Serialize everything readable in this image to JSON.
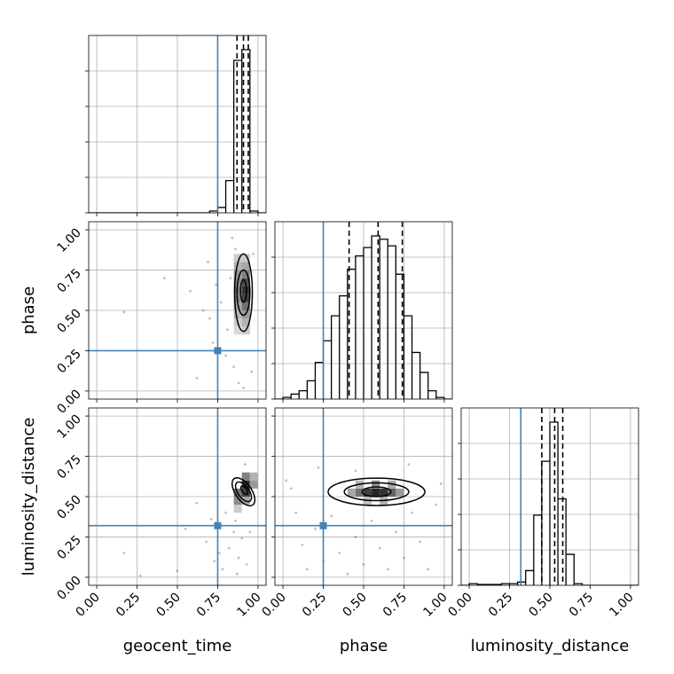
{
  "chart_data": {
    "type": "corner",
    "grid": true,
    "parameters": [
      "geocent_time",
      "phase",
      "luminosity_distance"
    ],
    "axis_labels": {
      "geocent_time": "geocent_time",
      "phase": "phase",
      "luminosity_distance": "luminosity_distance"
    },
    "range": [
      -0.05,
      1.05
    ],
    "ticks": [
      0.0,
      0.25,
      0.5,
      0.75,
      1.0
    ],
    "tick_labels": [
      "0.00",
      "0.25",
      "0.50",
      "0.75",
      "1.00"
    ],
    "truths": {
      "geocent_time": 0.75,
      "phase": 0.25,
      "luminosity_distance": 0.32
    },
    "truth_color": "#4682b4",
    "hist_color": "#000000",
    "marginals": {
      "geocent_time": {
        "bin_width": 0.05,
        "bins": [
          {
            "x": 0.7,
            "count": 0.01
          },
          {
            "x": 0.75,
            "count": 0.03
          },
          {
            "x": 0.8,
            "count": 0.18
          },
          {
            "x": 0.85,
            "count": 0.85
          },
          {
            "x": 0.9,
            "count": 0.91
          },
          {
            "x": 0.95,
            "count": 0.01
          }
        ],
        "quantiles": [
          0.87,
          0.91,
          0.94
        ]
      },
      "phase": {
        "bin_width": 0.05,
        "bins": [
          {
            "x": 0.0,
            "count": 0.01
          },
          {
            "x": 0.05,
            "count": 0.03
          },
          {
            "x": 0.1,
            "count": 0.05
          },
          {
            "x": 0.15,
            "count": 0.11
          },
          {
            "x": 0.2,
            "count": 0.22
          },
          {
            "x": 0.25,
            "count": 0.35
          },
          {
            "x": 0.3,
            "count": 0.5
          },
          {
            "x": 0.35,
            "count": 0.62
          },
          {
            "x": 0.4,
            "count": 0.78
          },
          {
            "x": 0.45,
            "count": 0.86
          },
          {
            "x": 0.5,
            "count": 0.91
          },
          {
            "x": 0.55,
            "count": 0.98
          },
          {
            "x": 0.6,
            "count": 0.96
          },
          {
            "x": 0.65,
            "count": 0.92
          },
          {
            "x": 0.7,
            "count": 0.75
          },
          {
            "x": 0.75,
            "count": 0.5
          },
          {
            "x": 0.8,
            "count": 0.28
          },
          {
            "x": 0.85,
            "count": 0.16
          },
          {
            "x": 0.9,
            "count": 0.05
          },
          {
            "x": 0.95,
            "count": 0.01
          }
        ],
        "quantiles": [
          0.41,
          0.59,
          0.74
        ]
      },
      "luminosity_distance": {
        "bin_width": 0.05,
        "bins": [
          {
            "x": 0.0,
            "count": 0.01
          },
          {
            "x": 0.05,
            "count": 0.005
          },
          {
            "x": 0.1,
            "count": 0.005
          },
          {
            "x": 0.15,
            "count": 0.005
          },
          {
            "x": 0.2,
            "count": 0.01
          },
          {
            "x": 0.25,
            "count": 0.01
          },
          {
            "x": 0.3,
            "count": 0.02
          },
          {
            "x": 0.35,
            "count": 0.09
          },
          {
            "x": 0.4,
            "count": 0.43
          },
          {
            "x": 0.45,
            "count": 0.76
          },
          {
            "x": 0.5,
            "count": 1.0
          },
          {
            "x": 0.55,
            "count": 0.53
          },
          {
            "x": 0.6,
            "count": 0.19
          },
          {
            "x": 0.65,
            "count": 0.01
          }
        ],
        "quantiles": [
          0.45,
          0.53,
          0.58
        ]
      }
    },
    "joint": [
      {
        "x": "geocent_time",
        "y": "phase",
        "scatter": [
          [
            0.17,
            0.49
          ],
          [
            0.42,
            0.7
          ],
          [
            0.58,
            0.62
          ],
          [
            0.66,
            0.5
          ],
          [
            0.7,
            0.45
          ],
          [
            0.72,
            0.3
          ],
          [
            0.8,
            0.22
          ],
          [
            0.83,
            0.7
          ],
          [
            0.85,
            0.15
          ],
          [
            0.88,
            0.05
          ],
          [
            0.84,
            0.95
          ],
          [
            0.96,
            0.12
          ],
          [
            0.81,
            0.38
          ],
          [
            0.74,
            0.66
          ],
          [
            0.62,
            0.08
          ],
          [
            0.97,
            0.85
          ],
          [
            0.91,
            0.02
          ],
          [
            0.86,
            0.88
          ],
          [
            0.69,
            0.8
          ],
          [
            0.77,
            0.55
          ]
        ],
        "density_cells": [
          {
            "x": 0.85,
            "y": 0.35,
            "level": 0.15
          },
          {
            "x": 0.85,
            "y": 0.4,
            "level": 0.2
          },
          {
            "x": 0.85,
            "y": 0.45,
            "level": 0.3
          },
          {
            "x": 0.85,
            "y": 0.5,
            "level": 0.35
          },
          {
            "x": 0.85,
            "y": 0.55,
            "level": 0.45
          },
          {
            "x": 0.85,
            "y": 0.6,
            "level": 0.5
          },
          {
            "x": 0.85,
            "y": 0.65,
            "level": 0.45
          },
          {
            "x": 0.85,
            "y": 0.7,
            "level": 0.4
          },
          {
            "x": 0.85,
            "y": 0.75,
            "level": 0.3
          },
          {
            "x": 0.85,
            "y": 0.8,
            "level": 0.2
          },
          {
            "x": 0.9,
            "y": 0.35,
            "level": 0.2
          },
          {
            "x": 0.9,
            "y": 0.4,
            "level": 0.3
          },
          {
            "x": 0.9,
            "y": 0.45,
            "level": 0.4
          },
          {
            "x": 0.9,
            "y": 0.5,
            "level": 0.55
          },
          {
            "x": 0.9,
            "y": 0.55,
            "level": 0.75
          },
          {
            "x": 0.9,
            "y": 0.6,
            "level": 0.8
          },
          {
            "x": 0.9,
            "y": 0.65,
            "level": 0.7
          },
          {
            "x": 0.9,
            "y": 0.7,
            "level": 0.5
          },
          {
            "x": 0.9,
            "y": 0.75,
            "level": 0.35
          },
          {
            "x": 0.9,
            "y": 0.8,
            "level": 0.2
          }
        ],
        "contours": [
          {
            "cx": 0.91,
            "cy": 0.61,
            "rx": 0.04,
            "ry": 0.14
          },
          {
            "cx": 0.91,
            "cy": 0.61,
            "rx": 0.055,
            "ry": 0.24
          },
          {
            "cx": 0.91,
            "cy": 0.62,
            "rx": 0.018,
            "ry": 0.07
          }
        ]
      },
      {
        "x": "geocent_time",
        "y": "luminosity_distance",
        "scatter": [
          [
            0.17,
            0.15
          ],
          [
            0.5,
            0.04
          ],
          [
            0.55,
            0.3
          ],
          [
            0.62,
            0.46
          ],
          [
            0.68,
            0.22
          ],
          [
            0.73,
            0.1
          ],
          [
            0.78,
            0.05
          ],
          [
            0.82,
            0.18
          ],
          [
            0.85,
            0.28
          ],
          [
            0.88,
            0.12
          ],
          [
            0.9,
            0.24
          ],
          [
            0.93,
            0.08
          ],
          [
            0.27,
            0.01
          ],
          [
            0.8,
            0.4
          ],
          [
            0.86,
            0.35
          ],
          [
            0.95,
            0.28
          ],
          [
            0.71,
            0.36
          ],
          [
            0.92,
            0.7
          ],
          [
            0.76,
            0.15
          ],
          [
            0.87,
            0.02
          ]
        ],
        "density_cells": [
          {
            "x": 0.85,
            "y": 0.4,
            "level": 0.2
          },
          {
            "x": 0.85,
            "y": 0.45,
            "level": 0.45
          },
          {
            "x": 0.85,
            "y": 0.5,
            "level": 0.55
          },
          {
            "x": 0.9,
            "y": 0.45,
            "level": 0.35
          },
          {
            "x": 0.9,
            "y": 0.5,
            "level": 0.75
          },
          {
            "x": 0.9,
            "y": 0.55,
            "level": 0.8
          },
          {
            "x": 0.9,
            "y": 0.6,
            "level": 0.5
          },
          {
            "x": 0.95,
            "y": 0.55,
            "level": 0.4
          },
          {
            "x": 0.95,
            "y": 0.6,
            "level": 0.3
          }
        ],
        "contours": [
          {
            "cx": 0.91,
            "cy": 0.53,
            "rx": 0.05,
            "ry": 0.1,
            "rot": -35
          },
          {
            "cx": 0.91,
            "cy": 0.53,
            "rx": 0.035,
            "ry": 0.07,
            "rot": -35
          },
          {
            "cx": 0.915,
            "cy": 0.54,
            "rx": 0.015,
            "ry": 0.03,
            "rot": -35
          }
        ]
      },
      {
        "x": "phase",
        "y": "luminosity_distance",
        "scatter": [
          [
            0.05,
            0.55
          ],
          [
            0.08,
            0.4
          ],
          [
            0.12,
            0.2
          ],
          [
            0.15,
            0.05
          ],
          [
            0.2,
            0.3
          ],
          [
            0.25,
            0.1
          ],
          [
            0.3,
            0.38
          ],
          [
            0.35,
            0.15
          ],
          [
            0.4,
            0.02
          ],
          [
            0.45,
            0.25
          ],
          [
            0.5,
            0.08
          ],
          [
            0.55,
            0.35
          ],
          [
            0.6,
            0.18
          ],
          [
            0.65,
            0.05
          ],
          [
            0.7,
            0.28
          ],
          [
            0.75,
            0.12
          ],
          [
            0.8,
            0.4
          ],
          [
            0.85,
            0.22
          ],
          [
            0.9,
            0.05
          ],
          [
            0.95,
            0.45
          ],
          [
            0.02,
            0.6
          ],
          [
            0.98,
            0.58
          ],
          [
            0.22,
            0.68
          ],
          [
            0.78,
            0.7
          ],
          [
            0.45,
            0.66
          ]
        ],
        "density_cells": [
          {
            "x": 0.4,
            "y": 0.5,
            "level": 0.35
          },
          {
            "x": 0.45,
            "y": 0.5,
            "level": 0.55
          },
          {
            "x": 0.5,
            "y": 0.5,
            "level": 0.75
          },
          {
            "x": 0.55,
            "y": 0.5,
            "level": 0.85
          },
          {
            "x": 0.6,
            "y": 0.5,
            "level": 0.8
          },
          {
            "x": 0.65,
            "y": 0.5,
            "level": 0.6
          },
          {
            "x": 0.7,
            "y": 0.5,
            "level": 0.4
          },
          {
            "x": 0.45,
            "y": 0.55,
            "level": 0.3
          },
          {
            "x": 0.55,
            "y": 0.55,
            "level": 0.45
          },
          {
            "x": 0.65,
            "y": 0.55,
            "level": 0.35
          },
          {
            "x": 0.5,
            "y": 0.45,
            "level": 0.25
          },
          {
            "x": 0.6,
            "y": 0.45,
            "level": 0.3
          }
        ],
        "contours": [
          {
            "cx": 0.58,
            "cy": 0.53,
            "rx": 0.3,
            "ry": 0.085
          },
          {
            "cx": 0.58,
            "cy": 0.53,
            "rx": 0.2,
            "ry": 0.055
          },
          {
            "cx": 0.58,
            "cy": 0.53,
            "rx": 0.09,
            "ry": 0.03
          }
        ]
      }
    ]
  }
}
